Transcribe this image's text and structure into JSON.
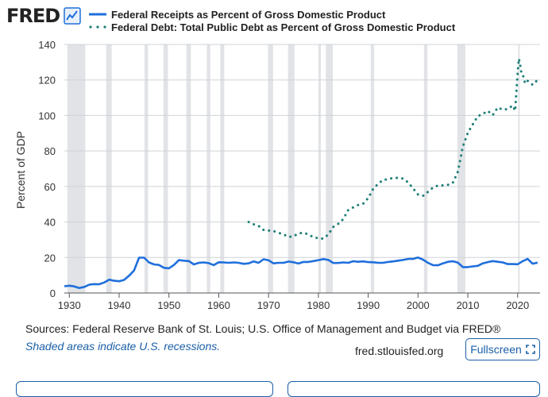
{
  "logo": {
    "text": "FRED",
    "icon": "chart-line-icon"
  },
  "footer": {
    "sources": "Sources: Federal Reserve Bank of St. Louis; U.S. Office of Management and Budget via FRED®",
    "recession_note": "Shaded areas indicate U.S. recessions.",
    "site": "fred.stlouisfed.org",
    "fullscreen_label": "Fullscreen",
    "fullscreen_icon": "expand-icon"
  },
  "colors": {
    "receipts": "#1f6fdc",
    "debt": "#1e7f77",
    "recession": "#e1e3e6",
    "grid": "#cfd3d8"
  },
  "chart_data": {
    "type": "line",
    "title": "",
    "xlabel": "",
    "ylabel": "Percent of GDP",
    "xlim": [
      1929,
      2024.5
    ],
    "ylim": [
      0,
      140
    ],
    "x_ticks": [
      "1930",
      "1940",
      "1950",
      "1960",
      "1970",
      "1980",
      "1990",
      "2000",
      "2010",
      "2020"
    ],
    "y_ticks": [
      "0",
      "20",
      "40",
      "60",
      "80",
      "100",
      "120",
      "140"
    ],
    "grid": true,
    "legend_position": "top",
    "recessions": [
      [
        1929.6,
        1933.2
      ],
      [
        1937.4,
        1938.5
      ],
      [
        1945.1,
        1945.8
      ],
      [
        1948.9,
        1949.8
      ],
      [
        1953.5,
        1954.4
      ],
      [
        1957.6,
        1958.3
      ],
      [
        1960.3,
        1961.1
      ],
      [
        1969.9,
        1970.9
      ],
      [
        1973.9,
        1975.2
      ],
      [
        1980.0,
        1980.5
      ],
      [
        1981.5,
        1982.9
      ],
      [
        1990.5,
        1991.2
      ],
      [
        2001.2,
        2001.9
      ],
      [
        2007.9,
        2009.5
      ],
      [
        2020.1,
        2020.4
      ]
    ],
    "series": [
      {
        "name": "Federal Receipts as Percent of Gross Domestic Product",
        "style": "solid",
        "x": [
          1929,
          1930,
          1931,
          1932,
          1933,
          1934,
          1935,
          1936,
          1937,
          1938,
          1939,
          1940,
          1941,
          1942,
          1943,
          1944,
          1945,
          1946,
          1947,
          1948,
          1949,
          1950,
          1951,
          1952,
          1953,
          1954,
          1955,
          1956,
          1957,
          1958,
          1959,
          1960,
          1961,
          1962,
          1963,
          1964,
          1965,
          1966,
          1967,
          1968,
          1969,
          1970,
          1971,
          1972,
          1973,
          1974,
          1975,
          1976,
          1977,
          1978,
          1979,
          1980,
          1981,
          1982,
          1983,
          1984,
          1985,
          1986,
          1987,
          1988,
          1989,
          1990,
          1991,
          1992,
          1993,
          1994,
          1995,
          1996,
          1997,
          1998,
          1999,
          2000,
          2001,
          2002,
          2003,
          2004,
          2005,
          2006,
          2007,
          2008,
          2009,
          2010,
          2011,
          2012,
          2013,
          2014,
          2015,
          2016,
          2017,
          2018,
          2019,
          2020,
          2021,
          2022,
          2023,
          2024
        ],
        "values": [
          3.8,
          4.1,
          3.7,
          2.8,
          3.4,
          4.7,
          5.0,
          4.9,
          5.9,
          7.5,
          6.9,
          6.6,
          7.4,
          9.7,
          12.7,
          19.9,
          19.9,
          17.2,
          16.1,
          15.8,
          14.2,
          13.9,
          15.8,
          18.5,
          18.2,
          18.0,
          16.1,
          17.0,
          17.2,
          16.8,
          15.7,
          17.3,
          17.2,
          17.0,
          17.2,
          17.0,
          16.4,
          16.7,
          17.8,
          17.0,
          19.0,
          18.4,
          16.7,
          17.0,
          17.0,
          17.7,
          17.3,
          16.6,
          17.5,
          17.5,
          18.0,
          18.5,
          19.1,
          18.6,
          16.9,
          16.9,
          17.2,
          17.0,
          17.9,
          17.6,
          17.8,
          17.4,
          17.3,
          17.0,
          17.0,
          17.5,
          17.8,
          18.2,
          18.6,
          19.2,
          19.2,
          20.0,
          18.8,
          17.0,
          15.7,
          15.6,
          16.7,
          17.6,
          17.9,
          17.1,
          14.6,
          14.6,
          15.0,
          15.3,
          16.7,
          17.4,
          18.0,
          17.6,
          17.2,
          16.3,
          16.3,
          16.2,
          17.9,
          19.2,
          16.5,
          17.1
        ]
      },
      {
        "name": "Federal Debt: Total Public Debt as Percent of Gross Domestic Product",
        "style": "dotted",
        "x": [
          1966,
          1967,
          1968,
          1969,
          1970,
          1971,
          1972,
          1973,
          1974,
          1975,
          1976,
          1977,
          1978,
          1979,
          1980,
          1981,
          1982,
          1983,
          1984,
          1985,
          1986,
          1987,
          1988,
          1989,
          1990,
          1991,
          1992,
          1993,
          1994,
          1995,
          1996,
          1997,
          1998,
          1999,
          2000,
          2001,
          2002,
          2003,
          2004,
          2005,
          2006,
          2007,
          2008,
          2009,
          2010,
          2011,
          2012,
          2013,
          2014,
          2015,
          2016,
          2017,
          2018,
          2019,
          2019.5,
          2020,
          2020.25,
          2020.5,
          2020.75,
          2021,
          2021.5,
          2022,
          2023,
          2024
        ],
        "values": [
          40.0,
          38.7,
          37.8,
          35.5,
          35.2,
          34.9,
          33.9,
          33.0,
          31.6,
          31.9,
          33.6,
          33.9,
          33.0,
          31.4,
          30.8,
          30.6,
          33.0,
          37.2,
          39.0,
          41.6,
          46.8,
          48.2,
          49.6,
          50.3,
          53.5,
          58.7,
          61.5,
          63.8,
          64.0,
          64.9,
          64.8,
          64.5,
          62.3,
          58.9,
          55.5,
          54.7,
          57.0,
          59.4,
          60.5,
          60.6,
          60.9,
          62.1,
          68.3,
          82.5,
          90.3,
          95.0,
          99.6,
          100.8,
          102.6,
          100.2,
          104.5,
          103.3,
          103.6,
          105.6,
          102.6,
          124.0,
          132.0,
          129.0,
          124.0,
          123.5,
          118.0,
          119.5,
          117.3,
          120.0
        ]
      }
    ]
  }
}
